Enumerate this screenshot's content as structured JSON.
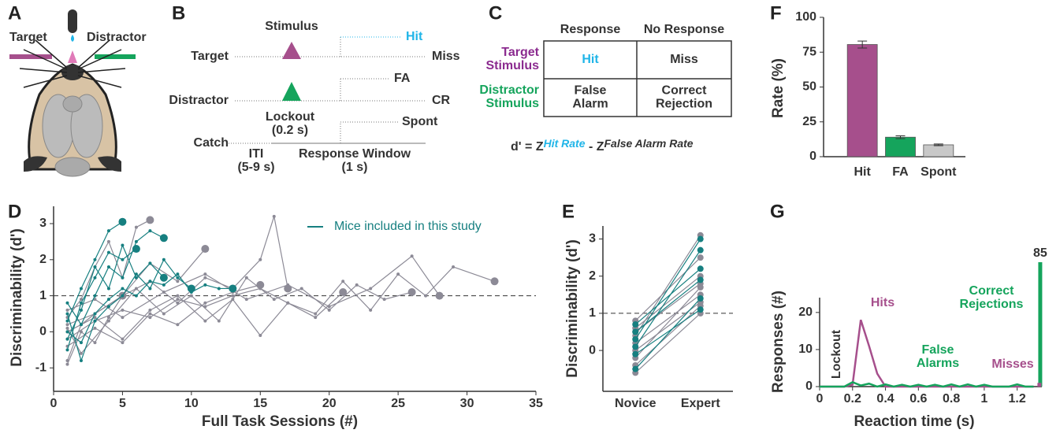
{
  "panel_letters": [
    "A",
    "B",
    "C",
    "D",
    "E",
    "F",
    "G"
  ],
  "panel_a": {
    "target": "Target",
    "distractor": "Distractor"
  },
  "panel_b": {
    "stimulus": "Stimulus",
    "rows": [
      "Target",
      "Distractor",
      "Catch"
    ],
    "outcomes": [
      "Hit",
      "Miss",
      "FA",
      "CR",
      "Spont"
    ],
    "lockout": [
      "Lockout",
      "(0.2 s)"
    ],
    "iti": [
      "ITI",
      "(5-9 s)"
    ],
    "window": [
      "Response Window",
      "(1 s)"
    ]
  },
  "panel_c": {
    "columns": [
      "Response",
      "No Response"
    ],
    "rows": [
      [
        "Target",
        "Stimulus"
      ],
      [
        "Distractor",
        "Stimulus"
      ]
    ],
    "cells": [
      [
        [
          "Hit"
        ],
        [
          "Miss"
        ]
      ],
      [
        [
          "False",
          "Alarm"
        ],
        [
          "Correct",
          "Rejection"
        ]
      ]
    ],
    "formula": {
      "lhs": "d' = Z",
      "hit": "Hit Rate",
      "minus": " - Z",
      "fa": "False Alarm Rate"
    }
  },
  "chart_data": [
    {
      "type": "line",
      "xlabel": "Full Task Sessions (#)",
      "ylabel": "Discriminability (d')",
      "xlim": [
        0,
        35
      ],
      "xticks": [
        0,
        5,
        10,
        15,
        20,
        25,
        30,
        35
      ],
      "ylim": [
        -1.65,
        3.48
      ],
      "yticks": [
        -1,
        0,
        1,
        2,
        3
      ],
      "threshold": 1,
      "legend_label": "Mice included in this study",
      "legend_color": "#167f80",
      "series": [
        {
          "color": "#8c8a96",
          "x": [
            1,
            3,
            5,
            7,
            9,
            11,
            13,
            15,
            16,
            17
          ],
          "values": [
            0.2,
            0.5,
            1.0,
            1.4,
            0.8,
            1.5,
            1.2,
            2.0,
            3.2,
            1.2
          ]
        },
        {
          "color": "#8c8a96",
          "x": [
            1,
            3,
            5,
            7,
            9,
            11,
            13,
            15,
            17,
            19,
            21,
            23,
            25,
            27,
            29,
            32
          ],
          "values": [
            -0.2,
            0.3,
            0.6,
            0.4,
            0.9,
            0.7,
            1.0,
            1.2,
            0.8,
            0.5,
            1.4,
            0.6,
            1.6,
            1.0,
            1.8,
            1.4
          ]
        },
        {
          "color": "#8c8a96",
          "x": [
            1,
            2,
            4,
            6,
            8,
            10,
            12,
            14,
            16,
            18,
            20,
            22,
            24,
            26
          ],
          "values": [
            0.1,
            -0.6,
            0.3,
            1.2,
            0.5,
            1.0,
            0.3,
            1.5,
            0.9,
            1.2,
            0.6,
            1.3,
            0.9,
            1.1
          ]
        },
        {
          "color": "#8c8a96",
          "x": [
            1,
            2,
            3,
            4,
            5,
            6,
            7
          ],
          "values": [
            0.4,
            0.9,
            1.8,
            2.5,
            1.5,
            2.9,
            3.1
          ]
        },
        {
          "color": "#8c8a96",
          "x": [
            1,
            3,
            5,
            7,
            9,
            11,
            13,
            15
          ],
          "values": [
            -0.4,
            0.1,
            -0.3,
            0.5,
            0.2,
            0.8,
            1.1,
            1.3
          ]
        },
        {
          "color": "#8c8a96",
          "x": [
            1,
            3,
            5,
            8,
            11,
            14,
            17,
            20,
            23,
            26,
            28
          ],
          "values": [
            0.6,
            0.9,
            0.4,
            1.1,
            1.6,
            0.9,
            1.3,
            0.7,
            1.2,
            2.1,
            1.0
          ]
        },
        {
          "color": "#8c8a96",
          "x": [
            1,
            2,
            3,
            5,
            7,
            9,
            11
          ],
          "values": [
            -0.8,
            0.2,
            0.5,
            1.0,
            1.9,
            1.4,
            2.3
          ]
        },
        {
          "color": "#8c8a96",
          "x": [
            1,
            3,
            5,
            7,
            9,
            11,
            13,
            15,
            17,
            19,
            21
          ],
          "values": [
            0.0,
            0.4,
            -0.2,
            0.6,
            1.0,
            0.3,
            0.9,
            -0.1,
            0.8,
            0.4,
            1.1
          ]
        },
        {
          "color": "#8c8a96",
          "x": [
            1,
            2,
            3,
            4,
            5
          ],
          "values": [
            -0.9,
            0.0,
            -0.3,
            0.4,
            1.0
          ]
        },
        {
          "color": "#167f80",
          "x": [
            1,
            2,
            3,
            4,
            5
          ],
          "values": [
            0.3,
            1.2,
            2.0,
            2.8,
            3.05
          ]
        },
        {
          "color": "#167f80",
          "x": [
            1,
            2,
            3,
            4,
            5,
            6
          ],
          "values": [
            -0.5,
            0.8,
            1.5,
            2.2,
            2.0,
            2.3
          ]
        },
        {
          "color": "#167f80",
          "x": [
            1,
            2,
            3,
            4,
            5,
            6,
            7,
            8
          ],
          "values": [
            0.8,
            0.2,
            1.0,
            1.8,
            1.5,
            2.5,
            2.8,
            2.6
          ]
        },
        {
          "color": "#167f80",
          "x": [
            1,
            2,
            3,
            4,
            5,
            6,
            7,
            8,
            9,
            10,
            11,
            12,
            13
          ],
          "values": [
            0.0,
            -0.3,
            0.5,
            0.9,
            1.2,
            1.0,
            1.4,
            1.3,
            1.6,
            1.1,
            1.3,
            1.2,
            1.2
          ]
        },
        {
          "color": "#167f80",
          "x": [
            1,
            2,
            3,
            4,
            5,
            6,
            7,
            8
          ],
          "values": [
            -0.2,
            0.6,
            1.8,
            1.2,
            2.4,
            1.5,
            1.9,
            1.5
          ]
        },
        {
          "color": "#167f80",
          "x": [
            1,
            2,
            3,
            4,
            5,
            6,
            7,
            8,
            9,
            10
          ],
          "values": [
            0.5,
            -0.8,
            0.3,
            0.7,
            1.0,
            1.6,
            1.2,
            2.0,
            1.5,
            1.2
          ]
        }
      ]
    },
    {
      "type": "paired",
      "ylabel": "Discriminability (d')",
      "categories": [
        "Novice",
        "Expert"
      ],
      "ylim": [
        -1.1,
        3.35
      ],
      "yticks": [
        0,
        1,
        2,
        3
      ],
      "threshold": 1,
      "series": [
        {
          "color": "#8c8a96",
          "values": [
            0.2,
            1.5
          ]
        },
        {
          "color": "#8c8a96",
          "values": [
            0.5,
            1.8
          ]
        },
        {
          "color": "#8c8a96",
          "values": [
            -0.6,
            1.0
          ]
        },
        {
          "color": "#8c8a96",
          "values": [
            0.8,
            2.5
          ]
        },
        {
          "color": "#8c8a96",
          "values": [
            0.0,
            1.3
          ]
        },
        {
          "color": "#8c8a96",
          "values": [
            -0.2,
            1.7
          ]
        },
        {
          "color": "#8c8a96",
          "values": [
            0.4,
            3.1
          ]
        },
        {
          "color": "#8c8a96",
          "values": [
            0.6,
            2.0
          ]
        },
        {
          "color": "#8c8a96",
          "values": [
            -0.4,
            1.2
          ]
        },
        {
          "color": "#167f80",
          "values": [
            0.3,
            3.0
          ]
        },
        {
          "color": "#167f80",
          "values": [
            0.7,
            2.2
          ]
        },
        {
          "color": "#167f80",
          "values": [
            -0.5,
            1.4
          ]
        },
        {
          "color": "#167f80",
          "values": [
            0.1,
            2.7
          ]
        },
        {
          "color": "#167f80",
          "values": [
            0.5,
            1.9
          ]
        },
        {
          "color": "#167f80",
          "values": [
            -0.1,
            1.1
          ]
        }
      ]
    },
    {
      "type": "bar",
      "ylabel": "Rate (%)",
      "categories": [
        "Hit",
        "FA",
        "Spont"
      ],
      "values": [
        80.5,
        14,
        8.5
      ],
      "errors": [
        2.5,
        1,
        0.6
      ],
      "colors": [
        "#a64f8c",
        "#15a45c",
        "#c8c8c8"
      ],
      "ylim": [
        0,
        100
      ],
      "yticks": [
        0,
        25,
        50,
        75,
        100
      ]
    },
    {
      "type": "histogram-line",
      "xlabel": "Reaction time (s)",
      "ylabel": "Responses (#)",
      "annotation": "Lockout",
      "xlim": [
        0,
        1.35
      ],
      "xticks": [
        0,
        0.2,
        0.4,
        0.6,
        0.8,
        1,
        1.2
      ],
      "ylim": [
        0,
        24
      ],
      "yticks": [
        0,
        10,
        20
      ],
      "x": [
        0,
        0.05,
        0.1,
        0.15,
        0.2,
        0.25,
        0.3,
        0.35,
        0.4,
        0.45,
        0.5,
        0.55,
        0.6,
        0.65,
        0.7,
        0.75,
        0.8,
        0.85,
        0.9,
        0.95,
        1,
        1.05,
        1.1,
        1.15,
        1.2,
        1.25,
        1.3
      ],
      "series": [
        {
          "label": [
            "Hits"
          ],
          "color": "#a64f8c",
          "values": [
            0,
            0,
            0,
            0,
            0.5,
            18,
            11,
            3.5,
            0,
            0,
            0,
            0,
            0,
            0,
            0,
            0,
            0,
            0,
            0,
            0,
            0,
            0,
            0,
            0,
            0,
            0,
            0
          ]
        },
        {
          "label": [
            "False",
            "Alarms"
          ],
          "color": "#15a45c",
          "values": [
            0,
            0,
            0,
            0,
            1.2,
            0.3,
            0.8,
            0,
            0.6,
            0,
            0.5,
            0,
            0.5,
            0,
            0.5,
            0,
            0.6,
            0,
            0.6,
            0,
            0.5,
            0,
            0,
            0,
            0.6,
            0,
            0
          ]
        }
      ],
      "end_bars": [
        {
          "label": [
            "Correct",
            "Rejections"
          ],
          "color": "#15a45c",
          "x": 1.34,
          "value": 85
        },
        {
          "label": [
            "Misses"
          ],
          "color": "#a64f8c",
          "x": 1.335,
          "value": 1
        }
      ]
    }
  ]
}
